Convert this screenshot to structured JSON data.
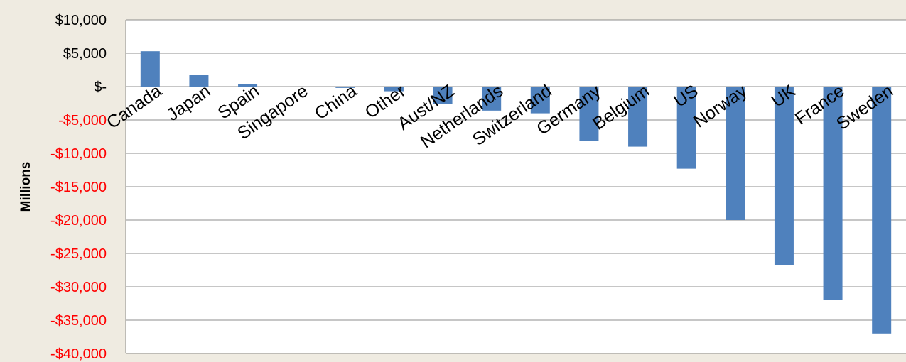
{
  "chart_data": {
    "type": "bar",
    "title": "",
    "xlabel": "",
    "ylabel": "Millions",
    "ylim": [
      -40000,
      10000
    ],
    "yticks": [
      10000,
      5000,
      0,
      -5000,
      -10000,
      -15000,
      -20000,
      -25000,
      -30000,
      -35000,
      -40000
    ],
    "ytick_labels": [
      "$10,000",
      "$5,000",
      "$-",
      "-$5,000",
      "-$10,000",
      "-$15,000",
      "-$20,000",
      "-$25,000",
      "-$30,000",
      "-$35,000",
      "-$40,000"
    ],
    "grid": true,
    "legend": "none",
    "categories": [
      "Canada",
      "Japan",
      "Spain",
      "Singapore",
      "China",
      "Other",
      "Aust/NZ",
      "Netherlands",
      "Switzerland",
      "Germany",
      "Belgium",
      "US",
      "Norway",
      "UK",
      "France",
      "Sweden"
    ],
    "values": [
      5300,
      1800,
      400,
      0,
      -200,
      -700,
      -2600,
      -3600,
      -4000,
      -8100,
      -9000,
      -12300,
      -20000,
      -26800,
      -32000,
      -37000
    ]
  },
  "colors": {
    "bar": "#4F81BD",
    "positive_tick": "#000000",
    "negative_tick": "#FF0000",
    "gridline": "#8C8C8C",
    "background": "#EFEBE1",
    "plot_area": "#FFFFFF"
  }
}
